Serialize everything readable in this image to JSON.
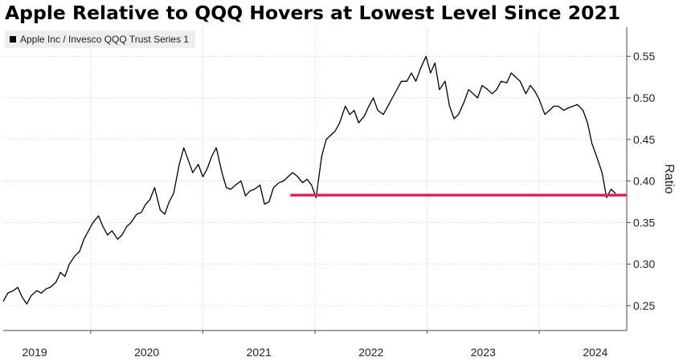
{
  "title": "Apple Relative to QQQ Hovers at Lowest Level Since 2021",
  "chart_data": {
    "type": "line",
    "title": "Apple Relative to QQQ Hovers at Lowest Level Since 2021",
    "xlabel": "",
    "ylabel": "Ratio",
    "y_axis_side": "right",
    "ylim": [
      0.22,
      0.585
    ],
    "y_ticks": [
      0.25,
      0.3,
      0.35,
      0.4,
      0.45,
      0.5,
      0.55
    ],
    "y_tick_labels": [
      "0.25",
      "0.30",
      "0.35",
      "0.40",
      "0.45",
      "0.50",
      "0.55"
    ],
    "x_range": [
      2018.72,
      2024.28
    ],
    "x_ticks": [
      2019,
      2020,
      2021,
      2022,
      2023,
      2024
    ],
    "x_tick_labels": [
      "2019",
      "2020",
      "2021",
      "2022",
      "2023",
      "2024"
    ],
    "grid": true,
    "legend_position": "top-left",
    "series": [
      {
        "name": "Apple Inc / Invesco QQQ Trust Series 1",
        "color": "#000000",
        "x": [
          2018.72,
          2018.76,
          2018.81,
          2018.85,
          2018.89,
          2018.93,
          2018.97,
          2019.02,
          2019.06,
          2019.1,
          2019.14,
          2019.19,
          2019.23,
          2019.27,
          2019.31,
          2019.36,
          2019.4,
          2019.44,
          2019.48,
          2019.52,
          2019.57,
          2019.61,
          2019.65,
          2019.69,
          2019.74,
          2019.78,
          2019.82,
          2019.86,
          2019.91,
          2019.95,
          2019.99,
          2020.03,
          2020.07,
          2020.12,
          2020.16,
          2020.2,
          2020.24,
          2020.29,
          2020.33,
          2020.37,
          2020.41,
          2020.46,
          2020.5,
          2020.54,
          2020.58,
          2020.62,
          2020.67,
          2020.71,
          2020.75,
          2020.79,
          2020.84,
          2020.88,
          2020.92,
          2020.96,
          2021.01,
          2021.05,
          2021.09,
          2021.13,
          2021.18,
          2021.22,
          2021.26,
          2021.3,
          2021.34,
          2021.39,
          2021.43,
          2021.47,
          2021.51,
          2021.56,
          2021.6,
          2021.64,
          2021.68,
          2021.72,
          2021.77,
          2021.81,
          2021.85,
          2021.89,
          2021.94,
          2021.98,
          2022.02,
          2022.06,
          2022.11,
          2022.15,
          2022.19,
          2022.23,
          2022.27,
          2022.32,
          2022.36,
          2022.4,
          2022.44,
          2022.49,
          2022.53,
          2022.57,
          2022.61,
          2022.66,
          2022.7,
          2022.74,
          2022.78,
          2022.83,
          2022.87,
          2022.91,
          2022.95,
          2022.99,
          2023.04,
          2023.08,
          2023.12,
          2023.16,
          2023.21,
          2023.25,
          2023.29,
          2023.33,
          2023.38,
          2023.42,
          2023.46,
          2023.5,
          2023.55,
          2023.59,
          2023.63,
          2023.67,
          2023.72,
          2023.76,
          2023.8,
          2023.84,
          2023.89,
          2023.93,
          2023.97,
          2024.01,
          2024.06,
          2024.1,
          2024.14,
          2024.18
        ],
        "y": [
          0.255,
          0.265,
          0.268,
          0.272,
          0.26,
          0.252,
          0.262,
          0.268,
          0.265,
          0.27,
          0.272,
          0.278,
          0.29,
          0.285,
          0.3,
          0.31,
          0.315,
          0.33,
          0.34,
          0.35,
          0.358,
          0.345,
          0.335,
          0.34,
          0.33,
          0.335,
          0.345,
          0.35,
          0.36,
          0.362,
          0.372,
          0.378,
          0.392,
          0.365,
          0.36,
          0.375,
          0.385,
          0.42,
          0.44,
          0.425,
          0.41,
          0.42,
          0.405,
          0.415,
          0.43,
          0.44,
          0.41,
          0.392,
          0.39,
          0.395,
          0.4,
          0.382,
          0.388,
          0.39,
          0.395,
          0.372,
          0.375,
          0.392,
          0.398,
          0.4,
          0.405,
          0.41,
          0.406,
          0.398,
          0.402,
          0.395,
          0.38,
          0.43,
          0.45,
          0.455,
          0.46,
          0.47,
          0.49,
          0.48,
          0.485,
          0.47,
          0.478,
          0.49,
          0.5,
          0.485,
          0.48,
          0.49,
          0.5,
          0.51,
          0.52,
          0.52,
          0.53,
          0.52,
          0.535,
          0.55,
          0.53,
          0.542,
          0.51,
          0.52,
          0.49,
          0.475,
          0.48,
          0.495,
          0.51,
          0.505,
          0.5,
          0.515,
          0.51,
          0.505,
          0.51,
          0.52,
          0.518,
          0.53,
          0.525,
          0.52,
          0.505,
          0.515,
          0.508,
          0.498,
          0.48,
          0.485,
          0.49,
          0.49,
          0.485,
          0.488,
          0.49,
          0.492,
          0.485,
          0.47,
          0.445,
          0.43,
          0.41,
          0.38,
          0.39,
          0.385
        ]
      }
    ],
    "reference_lines": [
      {
        "y": 0.383,
        "x_start": 2021.28,
        "x_end": 2024.28,
        "color": "#e0245e"
      }
    ]
  }
}
